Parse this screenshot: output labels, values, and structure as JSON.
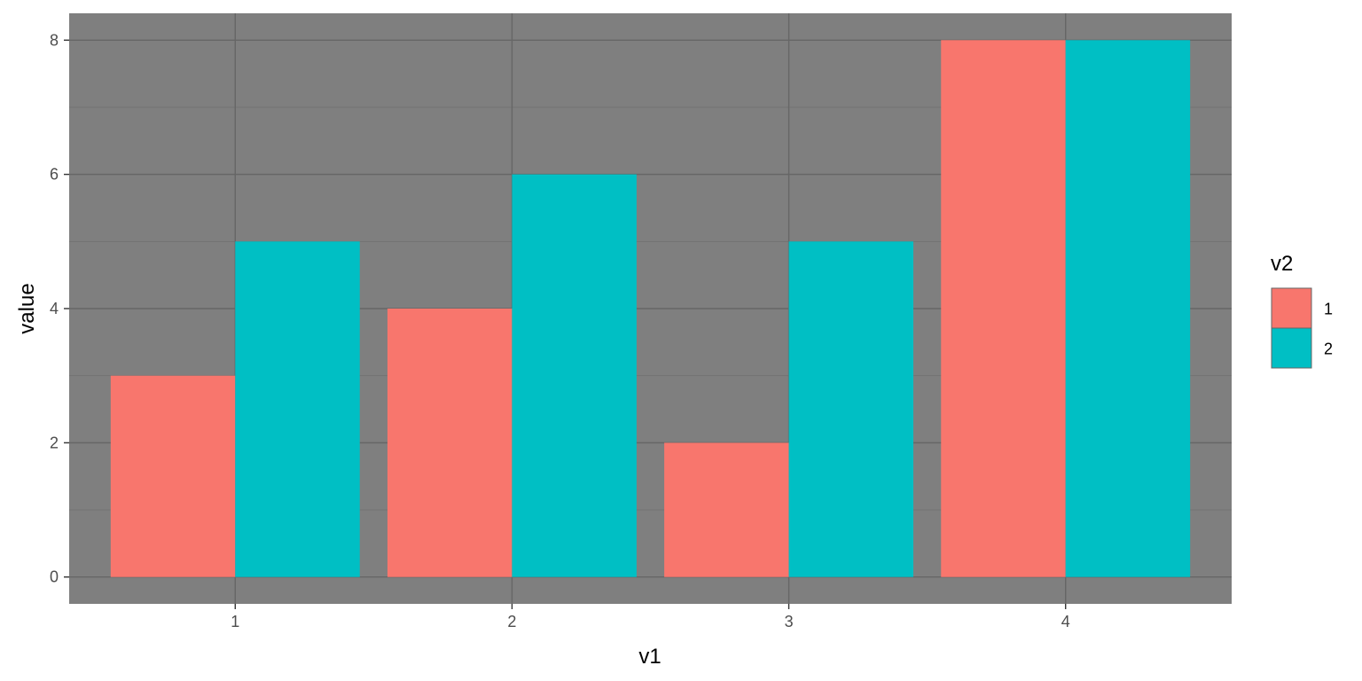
{
  "chart_data": {
    "type": "bar",
    "title": "",
    "xlabel": "v1",
    "ylabel": "value",
    "categories": [
      "1",
      "2",
      "3",
      "4"
    ],
    "series": [
      {
        "name": "1",
        "color": "#F8766D",
        "values": [
          3,
          4,
          2,
          8
        ]
      },
      {
        "name": "2",
        "color": "#00BFC4",
        "values": [
          5,
          6,
          5,
          8
        ]
      }
    ],
    "ylim": [
      -0.4,
      8.4
    ],
    "yticks": [
      "0",
      "2",
      "4",
      "6",
      "8"
    ],
    "legend": {
      "title": "v2",
      "position": "right"
    },
    "grid": true,
    "colors": {
      "panel_background": "#7F7F7F",
      "grid_major": "#666666",
      "grid_minor": "#737373"
    }
  }
}
